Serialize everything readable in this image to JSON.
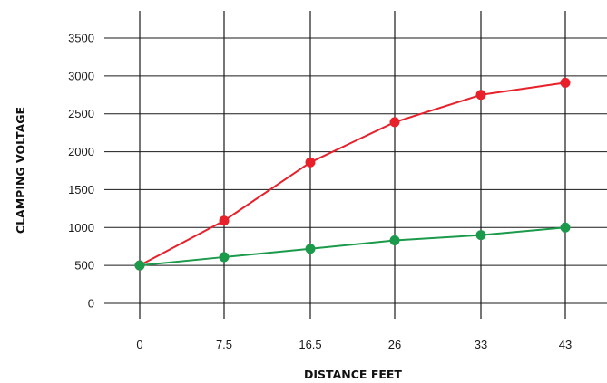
{
  "chart_data": {
    "type": "line",
    "xlabel": "DISTANCE FEET",
    "ylabel": "CLAMPING VOLTAGE",
    "categories": [
      "0",
      "7.5",
      "16.5",
      "26",
      "33",
      "43"
    ],
    "ylim": [
      0,
      3500
    ],
    "yticks": [
      0,
      500,
      1000,
      1500,
      2000,
      2500,
      3000,
      3500
    ],
    "grid": true,
    "legend": "none",
    "series": [
      {
        "color": "#e8202a",
        "values": [
          500,
          1090,
          1860,
          2390,
          2750,
          2910
        ]
      },
      {
        "color": "#1a9a4a",
        "values": [
          500,
          610,
          720,
          830,
          900,
          1000
        ]
      }
    ]
  }
}
